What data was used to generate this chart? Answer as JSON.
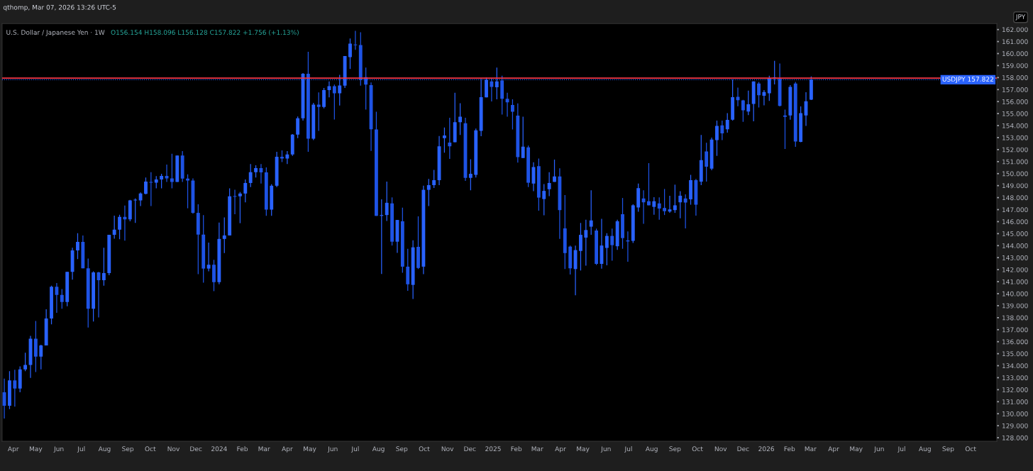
{
  "chart_data": {
    "type": "candlestick",
    "title": "U.S. Dollar / Japanese Yen · 1W",
    "annotations": [
      "O156.154 H158.096 L156.128 C157.822 +1.756 (+1.13%)",
      "qthomp, Mar 07, 2026 13:26 UTC-5",
      "JPY"
    ],
    "x": [
      "2023-03-20",
      "2023-03-27",
      "2023-04-03",
      "2023-04-10",
      "2023-04-17",
      "2023-04-24",
      "2023-05-01",
      "2023-05-08",
      "2023-05-15",
      "2023-05-22",
      "2023-05-29",
      "2023-06-05",
      "2023-06-12",
      "2023-06-19",
      "2023-06-26",
      "2023-07-03",
      "2023-07-10",
      "2023-07-17",
      "2023-07-24",
      "2023-07-31",
      "2023-08-07",
      "2023-08-14",
      "2023-08-21",
      "2023-08-28",
      "2023-09-04",
      "2023-09-11",
      "2023-09-18",
      "2023-09-25",
      "2023-10-02",
      "2023-10-09",
      "2023-10-16",
      "2023-10-23",
      "2023-10-30",
      "2023-11-06",
      "2023-11-13",
      "2023-11-20",
      "2023-11-27",
      "2023-12-04",
      "2023-12-11",
      "2023-12-18",
      "2023-12-25",
      "2024-01-01",
      "2024-01-08",
      "2024-01-15",
      "2024-01-22",
      "2024-01-29",
      "2024-02-05",
      "2024-02-12",
      "2024-02-19",
      "2024-02-26",
      "2024-03-04",
      "2024-03-11",
      "2024-03-18",
      "2024-03-25",
      "2024-04-01",
      "2024-04-08",
      "2024-04-15",
      "2024-04-22",
      "2024-04-29",
      "2024-05-06",
      "2024-05-13",
      "2024-05-20",
      "2024-05-27",
      "2024-06-03",
      "2024-06-10",
      "2024-06-17",
      "2024-06-24",
      "2024-07-01",
      "2024-07-08",
      "2024-07-15",
      "2024-07-22",
      "2024-07-29",
      "2024-08-05",
      "2024-08-12",
      "2024-08-19",
      "2024-08-26",
      "2024-09-02",
      "2024-09-09",
      "2024-09-16",
      "2024-09-23",
      "2024-09-30",
      "2024-10-07",
      "2024-10-14",
      "2024-10-21",
      "2024-10-28",
      "2024-11-04",
      "2024-11-11",
      "2024-11-18",
      "2024-11-25",
      "2024-12-02",
      "2024-12-09",
      "2024-12-16",
      "2024-12-23",
      "2024-12-30",
      "2025-01-06",
      "2025-01-13",
      "2025-01-20",
      "2025-01-27",
      "2025-02-03",
      "2025-02-10",
      "2025-02-17",
      "2025-02-24",
      "2025-03-03",
      "2025-03-10",
      "2025-03-17",
      "2025-03-24",
      "2025-03-31",
      "2025-04-07",
      "2025-04-14",
      "2025-04-21",
      "2025-04-28",
      "2025-05-05",
      "2025-05-12",
      "2025-05-19",
      "2025-05-26",
      "2025-06-02",
      "2025-06-09",
      "2025-06-16",
      "2025-06-23",
      "2025-06-30",
      "2025-07-07",
      "2025-07-14",
      "2025-07-21",
      "2025-07-28",
      "2025-08-04",
      "2025-08-11",
      "2025-08-18",
      "2025-08-25",
      "2025-09-01",
      "2025-09-08",
      "2025-09-15",
      "2025-09-22",
      "2025-09-29",
      "2025-10-06",
      "2025-10-13",
      "2025-10-20",
      "2025-10-27",
      "2025-11-03",
      "2025-11-10",
      "2025-11-17",
      "2025-11-24",
      "2025-12-01",
      "2025-12-08",
      "2025-12-15",
      "2025-12-22",
      "2025-12-29",
      "2026-01-05",
      "2026-01-12",
      "2026-01-19",
      "2026-01-26",
      "2026-02-02",
      "2026-02-09",
      "2026-02-16",
      "2026-02-23",
      "2026-03-02"
    ],
    "series": [
      {
        "colors": [
          "#1e53e5",
          "#2962ff",
          "#1e53e5",
          "#2962ff",
          "#2962ff",
          "#2962ff",
          "#1e53e5",
          "#2962ff",
          "#2962ff",
          "#2962ff",
          "#1e53e5",
          "#1e53e5",
          "#2962ff",
          "#2962ff",
          "#2962ff",
          "#1e53e5",
          "#1e53e5",
          "#2962ff",
          "#1e53e5",
          "#2962ff",
          "#2962ff",
          "#2962ff",
          "#2962ff",
          "#1e53e5",
          "#2962ff",
          "#2962ff",
          "#2962ff",
          "#2962ff",
          "#1e53e5",
          "#2962ff",
          "#2962ff",
          "#1e53e5",
          "#1e53e5",
          "#2962ff",
          "#1e53e5",
          "#1e53e5",
          "#1e53e5",
          "#1e53e5",
          "#1e53e5",
          "#2962ff",
          "#1e53e5",
          "#2962ff",
          "#2962ff",
          "#2962ff",
          "#1e53e5",
          "#2962ff",
          "#2962ff",
          "#2962ff",
          "#2962ff",
          "#1e53e5",
          "#1e53e5",
          "#2962ff",
          "#2962ff",
          "#1e53e5",
          "#2962ff",
          "#2962ff",
          "#2962ff",
          "#2962ff",
          "#1e53e5",
          "#2962ff",
          "#1e53e5",
          "#2962ff",
          "#2962ff",
          "#1e53e5",
          "#2962ff",
          "#2962ff",
          "#2962ff",
          "#1e53e5",
          "#1e53e5",
          "#1e53e5",
          "#1e53e5",
          "#1e53e5",
          "#2962ff",
          "#2962ff",
          "#1e53e5",
          "#2962ff",
          "#1e53e5",
          "#1e53e5",
          "#2962ff",
          "#1e53e5",
          "#2962ff",
          "#2962ff",
          "#2962ff",
          "#2962ff",
          "#2962ff",
          "#1e53e5",
          "#2962ff",
          "#2962ff",
          "#1e53e5",
          "#2962ff",
          "#2962ff",
          "#2962ff",
          "#2962ff",
          "#1e53e5",
          "#2962ff",
          "#1e53e5",
          "#1e53e5",
          "#1e53e5",
          "#1e53e5",
          "#2962ff",
          "#1e53e5",
          "#2962ff",
          "#1e53e5",
          "#2962ff",
          "#2962ff",
          "#2962ff",
          "#1e53e5",
          "#1e53e5",
          "#1e53e5",
          "#2962ff",
          "#2962ff",
          "#2962ff",
          "#2962ff",
          "#1e53e5",
          "#2962ff",
          "#2962ff",
          "#1e53e5",
          "#2962ff",
          "#1e53e5",
          "#1e53e5",
          "#2962ff",
          "#2962ff",
          "#1e53e5",
          "#1e53e5",
          "#2962ff",
          "#1e53e5",
          "#1e53e5",
          "#2962ff",
          "#2962ff",
          "#2962ff",
          "#1e53e5",
          "#2962ff",
          "#1e53e5",
          "#2962ff",
          "#1e53e5",
          "#2962ff",
          "#2962ff",
          "#1e53e5",
          "#2962ff",
          "#2962ff",
          "#1e53e5",
          "#1e53e5",
          "#2962ff",
          "#2962ff",
          "#1e53e5",
          "#2962ff",
          "#2962ff",
          "#2962ff",
          "#1e53e5",
          "#1e53e5",
          "#2962ff",
          "#1e53e5",
          "#2962ff",
          "#2962ff",
          "#2962ff"
        ],
        "ohlc": [
          [
            131.79,
            132.93,
            129.6,
            130.66
          ],
          [
            130.66,
            133.54,
            130.39,
            132.77
          ],
          [
            132.77,
            133.67,
            130.59,
            132.09
          ],
          [
            132.09,
            133.94,
            131.79,
            133.69
          ],
          [
            133.69,
            135.08,
            133.54,
            134.06
          ],
          [
            134.06,
            136.48,
            132.99,
            136.25
          ],
          [
            136.25,
            137.72,
            133.47,
            134.76
          ],
          [
            134.76,
            135.75,
            133.69,
            135.69
          ],
          [
            135.69,
            138.7,
            135.69,
            137.93
          ],
          [
            137.93,
            140.66,
            137.45,
            140.57
          ],
          [
            140.57,
            140.89,
            138.4,
            139.9
          ],
          [
            139.9,
            140.39,
            138.74,
            139.31
          ],
          [
            139.31,
            141.82,
            138.95,
            141.82
          ],
          [
            141.82,
            143.83,
            141.16,
            143.61
          ],
          [
            143.61,
            145.03,
            142.88,
            144.31
          ],
          [
            144.31,
            144.85,
            142.11,
            142.11
          ],
          [
            142.11,
            142.93,
            137.18,
            138.74
          ],
          [
            138.74,
            141.86,
            137.68,
            141.77
          ],
          [
            141.77,
            141.82,
            138.02,
            141.12
          ],
          [
            141.12,
            143.83,
            140.66,
            141.71
          ],
          [
            141.71,
            144.9,
            141.53,
            144.9
          ],
          [
            144.9,
            146.5,
            144.58,
            145.33
          ],
          [
            145.33,
            146.57,
            144.53,
            146.39
          ],
          [
            146.39,
            147.34,
            144.42,
            146.19
          ],
          [
            146.19,
            147.82,
            146.03,
            147.77
          ],
          [
            147.77,
            147.93,
            145.89,
            147.82
          ],
          [
            147.77,
            148.43,
            147.3,
            148.34
          ],
          [
            148.31,
            149.67,
            148.27,
            149.33
          ],
          [
            149.31,
            150.12,
            147.3,
            149.24
          ],
          [
            149.24,
            149.79,
            148.77,
            149.51
          ],
          [
            149.51,
            149.99,
            148.77,
            149.81
          ],
          [
            149.81,
            150.76,
            149.31,
            149.6
          ],
          [
            149.6,
            151.66,
            148.77,
            149.31
          ],
          [
            149.31,
            151.5,
            149.31,
            151.5
          ],
          [
            151.5,
            151.87,
            149.31,
            149.58
          ],
          [
            149.58,
            149.94,
            147.11,
            149.42
          ],
          [
            149.42,
            149.6,
            146.66,
            146.73
          ],
          [
            146.73,
            147.45,
            141.62,
            144.92
          ],
          [
            144.92,
            146.55,
            140.91,
            142.09
          ],
          [
            142.09,
            144.26,
            141.86,
            142.41
          ],
          [
            142.41,
            142.82,
            140.21,
            140.96
          ],
          [
            140.96,
            145.92,
            140.78,
            144.56
          ],
          [
            144.56,
            146.35,
            143.38,
            144.85
          ],
          [
            144.85,
            148.77,
            144.85,
            148.11
          ],
          [
            148.11,
            148.65,
            146.62,
            148.07
          ],
          [
            148.11,
            148.47,
            145.87,
            148.34
          ],
          [
            148.34,
            149.51,
            147.61,
            149.22
          ],
          [
            149.22,
            150.8,
            148.88,
            150.12
          ],
          [
            150.12,
            150.69,
            149.67,
            150.46
          ],
          [
            150.46,
            150.8,
            149.17,
            150.1
          ],
          [
            150.1,
            150.51,
            146.48,
            147.0
          ],
          [
            147.0,
            149.11,
            146.48,
            148.99
          ],
          [
            148.99,
            151.82,
            148.88,
            151.41
          ],
          [
            151.41,
            151.93,
            150.96,
            151.26
          ],
          [
            151.26,
            151.87,
            150.8,
            151.6
          ],
          [
            151.6,
            153.29,
            151.48,
            153.25
          ],
          [
            153.25,
            154.76,
            152.95,
            154.61
          ],
          [
            154.61,
            158.38,
            154.42,
            158.32
          ],
          [
            158.32,
            160.15,
            151.82,
            152.91
          ],
          [
            152.91,
            155.9,
            152.79,
            155.74
          ],
          [
            155.74,
            156.76,
            153.56,
            155.56
          ],
          [
            155.56,
            157.14,
            155.44,
            156.96
          ],
          [
            156.96,
            157.68,
            156.35,
            157.28
          ],
          [
            157.28,
            157.41,
            154.51,
            156.69
          ],
          [
            156.69,
            158.23,
            155.67,
            157.34
          ],
          [
            157.32,
            159.79,
            157.14,
            159.79
          ],
          [
            159.7,
            161.26,
            158.72,
            160.83
          ],
          [
            160.76,
            161.89,
            160.31,
            160.69
          ],
          [
            160.71,
            161.78,
            157.32,
            157.82
          ],
          [
            158.04,
            158.84,
            155.33,
            157.41
          ],
          [
            157.37,
            157.59,
            151.89,
            153.7
          ],
          [
            153.68,
            155.15,
            146.48,
            146.48
          ],
          [
            146.48,
            147.86,
            141.64,
            146.55
          ],
          [
            146.55,
            149.33,
            146.05,
            147.57
          ],
          [
            147.52,
            148.02,
            144.01,
            144.33
          ],
          [
            144.33,
            146.14,
            143.4,
            146.14
          ],
          [
            146.03,
            147.16,
            141.75,
            142.25
          ],
          [
            142.25,
            143.74,
            140.24,
            140.78
          ],
          [
            140.73,
            144.44,
            139.56,
            143.86
          ],
          [
            143.9,
            146.44,
            142.05,
            142.14
          ],
          [
            142.25,
            148.99,
            141.62,
            148.65
          ],
          [
            148.65,
            149.56,
            147.3,
            149.04
          ],
          [
            149.04,
            150.31,
            148.81,
            149.45
          ],
          [
            149.45,
            153.13,
            149.04,
            152.27
          ],
          [
            152.95,
            153.84,
            151.75,
            153.18
          ],
          [
            152.59,
            154.65,
            151.23,
            152.27
          ],
          [
            152.61,
            156.73,
            152.61,
            154.29
          ],
          [
            154.29,
            155.87,
            153.22,
            154.74
          ],
          [
            154.2,
            154.65,
            149.4,
            149.65
          ],
          [
            149.65,
            151.19,
            148.61,
            149.99
          ],
          [
            149.9,
            153.75,
            149.67,
            153.61
          ],
          [
            153.56,
            157.89,
            153.11,
            156.37
          ],
          [
            156.35,
            158.0,
            156.35,
            157.8
          ],
          [
            157.68,
            157.98,
            156.01,
            157.23
          ],
          [
            157.19,
            158.84,
            156.19,
            157.68
          ],
          [
            157.75,
            158.16,
            154.92,
            156.23
          ],
          [
            156.23,
            156.73,
            154.74,
            155.94
          ],
          [
            155.71,
            156.19,
            153.68,
            155.15
          ],
          [
            154.83,
            155.85,
            150.92,
            151.37
          ],
          [
            151.3,
            154.74,
            151.3,
            152.25
          ],
          [
            152.18,
            152.34,
            148.88,
            149.24
          ],
          [
            149.17,
            150.94,
            148.54,
            150.55
          ],
          [
            150.62,
            151.26,
            146.91,
            148.0
          ],
          [
            147.88,
            149.13,
            146.53,
            148.56
          ],
          [
            148.7,
            150.12,
            148.13,
            149.22
          ],
          [
            149.31,
            151.17,
            149.31,
            149.76
          ],
          [
            149.76,
            150.44,
            144.56,
            146.96
          ],
          [
            145.44,
            148.22,
            142.05,
            143.38
          ],
          [
            143.92,
            144.01,
            141.59,
            142.11
          ],
          [
            142.05,
            144.01,
            139.87,
            143.63
          ],
          [
            143.56,
            145.89,
            141.93,
            144.9
          ],
          [
            144.67,
            146.16,
            142.34,
            145.3
          ],
          [
            145.58,
            148.61,
            144.9,
            146.1
          ],
          [
            145.26,
            145.42,
            142.39,
            142.48
          ],
          [
            142.48,
            146.23,
            142.09,
            144.01
          ],
          [
            143.81,
            145.03,
            142.36,
            144.81
          ],
          [
            144.81,
            145.42,
            142.75,
            144.04
          ],
          [
            143.95,
            146.16,
            143.65,
            146.03
          ],
          [
            146.62,
            147.97,
            143.74,
            144.63
          ],
          [
            144.44,
            145.19,
            142.66,
            144.35
          ],
          [
            144.4,
            147.45,
            144.22,
            147.36
          ],
          [
            147.18,
            149.17,
            146.82,
            148.79
          ],
          [
            147.93,
            148.61,
            145.82,
            147.61
          ],
          [
            147.7,
            150.87,
            147.36,
            147.36
          ],
          [
            147.23,
            148.04,
            146.57,
            147.7
          ],
          [
            147.52,
            148.02,
            146.16,
            147.09
          ],
          [
            147.14,
            148.72,
            146.55,
            146.87
          ],
          [
            146.84,
            148.16,
            146.73,
            147.02
          ],
          [
            146.96,
            149.08,
            146.73,
            147.36
          ],
          [
            147.61,
            148.54,
            146.28,
            148.16
          ],
          [
            147.93,
            148.27,
            145.44,
            147.59
          ],
          [
            147.86,
            149.9,
            147.41,
            149.45
          ],
          [
            149.45,
            149.56,
            146.5,
            147.41
          ],
          [
            149.33,
            153.22,
            149.04,
            151.12
          ],
          [
            151.84,
            152.57,
            149.33,
            150.58
          ],
          [
            150.42,
            153.0,
            150.28,
            152.84
          ],
          [
            152.79,
            154.42,
            151.48,
            153.97
          ],
          [
            154.02,
            154.42,
            152.79,
            153.36
          ],
          [
            153.7,
            155.04,
            153.41,
            154.47
          ],
          [
            154.49,
            157.84,
            154.42,
            156.37
          ],
          [
            156.39,
            157.16,
            155.62,
            156.12
          ],
          [
            156.1,
            156.14,
            154.31,
            155.28
          ],
          [
            155.17,
            156.91,
            154.88,
            155.78
          ],
          [
            155.8,
            157.68,
            154.36,
            157.68
          ],
          [
            157.5,
            157.64,
            155.51,
            156.53
          ],
          [
            156.48,
            156.96,
            155.69,
            156.8
          ],
          [
            156.69,
            158.16,
            156.05,
            157.93
          ],
          [
            157.93,
            159.4,
            157.43,
            158.02
          ],
          [
            157.89,
            159.18,
            155.6,
            155.65
          ],
          [
            154.85,
            155.33,
            152.05,
            154.72
          ],
          [
            154.85,
            157.37,
            154.49,
            157.23
          ],
          [
            157.5,
            157.64,
            152.23,
            152.68
          ],
          [
            152.64,
            155.6,
            152.61,
            155.04
          ],
          [
            154.85,
            156.78,
            153.97,
            156.03
          ],
          [
            156.154,
            158.096,
            156.128,
            157.822
          ]
        ]
      }
    ],
    "xlim": [
      "2023-03-17",
      "2026-11-05"
    ],
    "ylim": [
      127.7,
      162.5
    ],
    "xticks": [
      {
        "value": "2023-04-01",
        "label": "Apr"
      },
      {
        "value": "2023-05-01",
        "label": "May"
      },
      {
        "value": "2023-06-01",
        "label": "Jun"
      },
      {
        "value": "2023-07-01",
        "label": "Jul"
      },
      {
        "value": "2023-08-01",
        "label": "Aug"
      },
      {
        "value": "2023-09-01",
        "label": "Sep"
      },
      {
        "value": "2023-10-01",
        "label": "Oct"
      },
      {
        "value": "2023-11-01",
        "label": "Nov"
      },
      {
        "value": "2023-12-01",
        "label": "Dec"
      },
      {
        "value": "2024-01-01",
        "label": "2024"
      },
      {
        "value": "2024-02-01",
        "label": "Feb"
      },
      {
        "value": "2024-03-01",
        "label": "Mar"
      },
      {
        "value": "2024-04-01",
        "label": "Apr"
      },
      {
        "value": "2024-05-01",
        "label": "May"
      },
      {
        "value": "2024-06-01",
        "label": "Jun"
      },
      {
        "value": "2024-07-01",
        "label": "Jul"
      },
      {
        "value": "2024-08-01",
        "label": "Aug"
      },
      {
        "value": "2024-09-01",
        "label": "Sep"
      },
      {
        "value": "2024-10-01",
        "label": "Oct"
      },
      {
        "value": "2024-11-01",
        "label": "Nov"
      },
      {
        "value": "2024-12-01",
        "label": "Dec"
      },
      {
        "value": "2025-01-01",
        "label": "2025"
      },
      {
        "value": "2025-02-01",
        "label": "Feb"
      },
      {
        "value": "2025-03-01",
        "label": "Mar"
      },
      {
        "value": "2025-04-01",
        "label": "Apr"
      },
      {
        "value": "2025-05-01",
        "label": "May"
      },
      {
        "value": "2025-06-01",
        "label": "Jun"
      },
      {
        "value": "2025-07-01",
        "label": "Jul"
      },
      {
        "value": "2025-08-01",
        "label": "Aug"
      },
      {
        "value": "2025-09-01",
        "label": "Sep"
      },
      {
        "value": "2025-10-01",
        "label": "Oct"
      },
      {
        "value": "2025-11-01",
        "label": "Nov"
      },
      {
        "value": "2025-12-01",
        "label": "Dec"
      },
      {
        "value": "2026-01-01",
        "label": "2026"
      },
      {
        "value": "2026-02-01",
        "label": "Feb"
      },
      {
        "value": "2026-03-01",
        "label": "Mar"
      },
      {
        "value": "2026-04-01",
        "label": "Apr"
      },
      {
        "value": "2026-05-01",
        "label": "May"
      },
      {
        "value": "2026-06-01",
        "label": "Jun"
      },
      {
        "value": "2026-07-01",
        "label": "Jul"
      },
      {
        "value": "2026-08-01",
        "label": "Aug"
      },
      {
        "value": "2026-09-01",
        "label": "Sep"
      },
      {
        "value": "2026-10-01",
        "label": "Oct"
      }
    ],
    "yticks": [
      {
        "value": 128,
        "label": "128.000"
      },
      {
        "value": 129,
        "label": "129.000"
      },
      {
        "value": 130,
        "label": "130.000"
      },
      {
        "value": 131,
        "label": "131.000"
      },
      {
        "value": 132,
        "label": "132.000"
      },
      {
        "value": 133,
        "label": "133.000"
      },
      {
        "value": 134,
        "label": "134.000"
      },
      {
        "value": 135,
        "label": "135.000"
      },
      {
        "value": 136,
        "label": "136.000"
      },
      {
        "value": 137,
        "label": "137.000"
      },
      {
        "value": 138,
        "label": "138.000"
      },
      {
        "value": 139,
        "label": "139.000"
      },
      {
        "value": 140,
        "label": "140.000"
      },
      {
        "value": 141,
        "label": "141.000"
      },
      {
        "value": 142,
        "label": "142.000"
      },
      {
        "value": 143,
        "label": "143.000"
      },
      {
        "value": 144,
        "label": "144.000"
      },
      {
        "value": 145,
        "label": "145.000"
      },
      {
        "value": 146,
        "label": "146.000"
      },
      {
        "value": 147,
        "label": "147.000"
      },
      {
        "value": 148,
        "label": "148.000"
      },
      {
        "value": 149,
        "label": "149.000"
      },
      {
        "value": 150,
        "label": "150.000"
      },
      {
        "value": 151,
        "label": "151.000"
      },
      {
        "value": 152,
        "label": "152.000"
      },
      {
        "value": 153,
        "label": "153.000"
      },
      {
        "value": 154,
        "label": "154.000"
      },
      {
        "value": 155,
        "label": "155.000"
      },
      {
        "value": 156,
        "label": "156.000"
      },
      {
        "value": 157,
        "label": "157.000"
      },
      {
        "value": 158,
        "label": "158.000"
      },
      {
        "value": 159,
        "label": "159.000"
      },
      {
        "value": 160,
        "label": "160.000"
      },
      {
        "value": 161,
        "label": "161.000"
      },
      {
        "value": 162,
        "label": "162.000"
      }
    ],
    "ref_lines": [
      {
        "axis": "y",
        "value": 157.95,
        "color": "#f23645",
        "line_style": "solid"
      },
      {
        "axis": "y",
        "value": 157.822,
        "label": "USDJPY 157.822",
        "color": "#2962ff",
        "line_style": "dotted"
      }
    ],
    "grid": false
  }
}
